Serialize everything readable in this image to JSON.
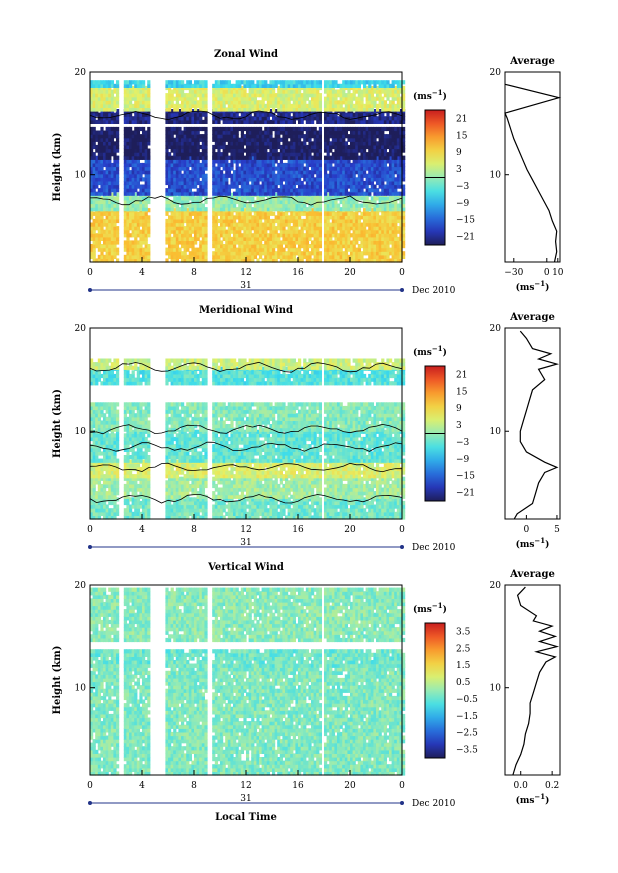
{
  "chart_data": [
    {
      "type": "heatmap",
      "title": "Zonal Wind",
      "ylabel": "Height (km)",
      "x_ticks": [
        "0",
        "4",
        "8",
        "12",
        "16",
        "20",
        "0"
      ],
      "y_ticks": [
        "20",
        "10"
      ],
      "xlim": [
        0,
        24
      ],
      "ylim": [
        1.5,
        20
      ],
      "date_marker": "31",
      "date_label": "Dec 2010",
      "colorbar": {
        "unit": "(ms",
        "unit_exp": "−1",
        "unit_close": ")",
        "ticks": [
          "21",
          "15",
          "9",
          "3",
          "−3",
          "−9",
          "−15",
          "−21"
        ],
        "range": [
          -24,
          24
        ],
        "zero_line": true
      },
      "data_gaps_hours": [
        [
          2.0,
          2.6
        ],
        [
          4.6,
          5.8
        ],
        [
          8.9,
          9.3
        ],
        [
          17.6,
          17.9
        ]
      ],
      "layers": [
        {
          "from_km": 1.5,
          "to_km": 6.5,
          "wind_ms": 10
        },
        {
          "from_km": 6.5,
          "to_km": 8.0,
          "wind_ms": 0
        },
        {
          "from_km": 8.0,
          "to_km": 11.5,
          "wind_ms": -17
        },
        {
          "from_km": 11.5,
          "to_km": 14.5,
          "wind_ms": -24
        },
        {
          "from_km": 15.0,
          "to_km": 16.2,
          "wind_ms": -22
        },
        {
          "from_km": 16.2,
          "to_km": 18.5,
          "wind_ms": 5
        },
        {
          "from_km": 18.5,
          "to_km": 19.2,
          "wind_ms": -6
        }
      ],
      "profile": {
        "title": "Average",
        "x_ticks": [
          "−30",
          "0",
          "10"
        ],
        "xlim": [
          -38,
          12
        ],
        "y_ticks": [
          "20",
          "10"
        ],
        "ylim": [
          1.5,
          20
        ],
        "xlabel": "(ms",
        "xlabel_exp": "−1",
        "xlabel_close": ")",
        "h": [
          1.5,
          2.5,
          3.5,
          4.5,
          5.5,
          6.5,
          7.5,
          8.5,
          9.5,
          10.5,
          11.5,
          12.5,
          13.5,
          14.5,
          15.5,
          16.0,
          17.5,
          18.8
        ],
        "u": [
          7,
          9,
          8,
          9,
          5,
          2,
          -3,
          -8,
          -13,
          -18,
          -22,
          -26,
          -30,
          -33,
          -36,
          -38,
          11,
          -38
        ]
      }
    },
    {
      "type": "heatmap",
      "title": "Meridional Wind",
      "ylabel": "Height (km)",
      "x_ticks": [
        "0",
        "4",
        "8",
        "12",
        "16",
        "20",
        "0"
      ],
      "y_ticks": [
        "20",
        "10"
      ],
      "xlim": [
        0,
        24
      ],
      "ylim": [
        1.5,
        20
      ],
      "date_marker": "31",
      "date_label": "Dec 2010",
      "colorbar": {
        "unit": "(ms",
        "unit_exp": "−1",
        "unit_close": ")",
        "ticks": [
          "21",
          "15",
          "9",
          "3",
          "−3",
          "−9",
          "−15",
          "−21"
        ],
        "range": [
          -24,
          24
        ],
        "zero_line": true
      },
      "data_gaps_hours": [
        [
          2.0,
          2.6
        ],
        [
          4.6,
          5.8
        ],
        [
          8.9,
          9.3
        ],
        [
          17.6,
          17.9
        ]
      ],
      "layers": [
        {
          "from_km": 1.5,
          "to_km": 3.5,
          "wind_ms": -2
        },
        {
          "from_km": 3.5,
          "to_km": 5.5,
          "wind_ms": 1
        },
        {
          "from_km": 5.5,
          "to_km": 7.0,
          "wind_ms": 5
        },
        {
          "from_km": 7.0,
          "to_km": 10.0,
          "wind_ms": -3
        },
        {
          "from_km": 10.0,
          "to_km": 12.5,
          "wind_ms": -1
        },
        {
          "from_km": 14.5,
          "to_km": 16.0,
          "wind_ms": -4
        },
        {
          "from_km": 16.0,
          "to_km": 17.0,
          "wind_ms": 4
        }
      ],
      "profile": {
        "title": "Average",
        "x_ticks": [
          "0",
          "5"
        ],
        "xlim": [
          -3.5,
          5.5
        ],
        "y_ticks": [
          "20",
          "10"
        ],
        "ylim": [
          1.5,
          20
        ],
        "xlabel": "(ms",
        "xlabel_exp": "−1",
        "xlabel_close": ")",
        "h": [
          1.5,
          2.0,
          3.0,
          4.0,
          5.0,
          6.0,
          6.5,
          7.0,
          8.0,
          9.0,
          10.0,
          11.0,
          12.0,
          13.0,
          14.0,
          15.0,
          16.0,
          16.5,
          17.0,
          17.5,
          18.0,
          19.0,
          19.7
        ],
        "u": [
          -2,
          -1.5,
          1,
          1.5,
          2,
          3,
          5,
          3,
          0,
          -1,
          -1,
          -0.5,
          0,
          0.5,
          1,
          3,
          2,
          5,
          2,
          4,
          1,
          0,
          -1
        ]
      }
    },
    {
      "type": "heatmap",
      "title": "Vertical Wind",
      "ylabel": "Height (km)",
      "xlabel": "Local Time",
      "x_ticks": [
        "0",
        "4",
        "8",
        "12",
        "16",
        "20",
        "0"
      ],
      "y_ticks": [
        "20",
        "10"
      ],
      "xlim": [
        0,
        24
      ],
      "ylim": [
        1.5,
        20
      ],
      "date_marker": "31",
      "date_label": "Dec 2010",
      "colorbar": {
        "unit": "(ms",
        "unit_exp": "−1",
        "unit_close": ")",
        "ticks": [
          "3.5",
          "2.5",
          "1.5",
          "0.5",
          "−0.5",
          "−1.5",
          "−2.5",
          "−3.5"
        ],
        "range": [
          -4,
          4
        ],
        "zero_line": false
      },
      "data_gaps_hours": [
        [
          2.0,
          2.6
        ],
        [
          4.6,
          5.8
        ],
        [
          8.9,
          9.3
        ],
        [
          17.6,
          17.9
        ]
      ],
      "layers": [
        {
          "from_km": 1.5,
          "to_km": 12.0,
          "wind_ms": -0.2
        },
        {
          "from_km": 12.0,
          "to_km": 13.5,
          "wind_ms": -0.4
        },
        {
          "from_km": 14.5,
          "to_km": 19.5,
          "wind_ms": -0.1
        }
      ],
      "profile": {
        "title": "Average",
        "x_ticks": [
          "0.0",
          "0.2"
        ],
        "xlim": [
          -0.1,
          0.25
        ],
        "y_ticks": [
          "20",
          "10"
        ],
        "ylim": [
          1.5,
          20
        ],
        "xlabel": "(ms",
        "xlabel_exp": "−1",
        "xlabel_close": ")",
        "h": [
          1.5,
          2.5,
          3.5,
          4.5,
          5.5,
          6.5,
          7.5,
          8.5,
          9.5,
          10.5,
          11.5,
          12.5,
          13.0,
          13.5,
          14.0,
          14.5,
          15.0,
          15.5,
          16.0,
          16.5,
          17.0,
          18.0,
          19.0,
          19.8
        ],
        "u": [
          -0.05,
          -0.03,
          0.0,
          0.02,
          0.03,
          0.05,
          0.06,
          0.06,
          0.08,
          0.1,
          0.12,
          0.16,
          0.22,
          0.1,
          0.23,
          0.12,
          0.22,
          0.12,
          0.2,
          0.08,
          0.1,
          0.0,
          -0.02,
          0.03
        ]
      }
    }
  ]
}
